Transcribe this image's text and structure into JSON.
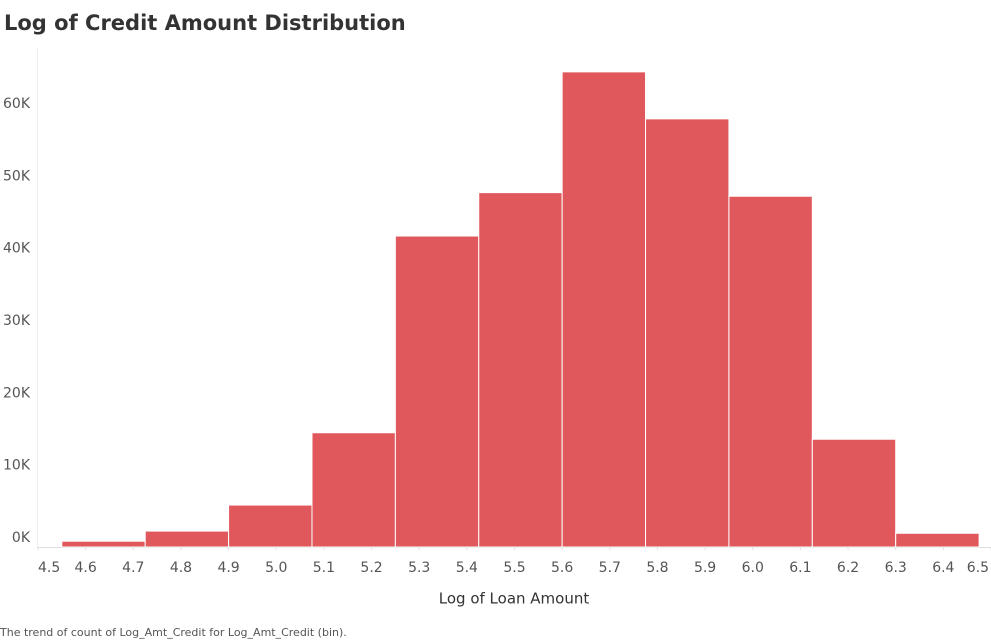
{
  "chart_data": {
    "type": "histogram",
    "title": "Log of Credit Amount Distribution",
    "x_label": "Log of Loan Amount",
    "footnote": "The trend of count of Log_Amt_Credit for Log_Amt_Credit (bin).",
    "bins": [
      4.55,
      4.725,
      4.9,
      5.075,
      5.25,
      5.425,
      5.6,
      5.775,
      5.95,
      6.125,
      6.3,
      6.475
    ],
    "values": [
      800,
      2200,
      5800,
      15800,
      43000,
      49000,
      65700,
      59200,
      48500,
      14900,
      1900
    ],
    "color": "#e0585b",
    "xlim": [
      4.5,
      6.5
    ],
    "xticks": [
      4.5,
      4.6,
      4.7,
      4.8,
      4.9,
      {
        "value": 5.0,
        "label": "5.0"
      },
      5.1,
      5.2,
      5.3,
      5.4,
      5.5,
      5.6,
      5.7,
      5.8,
      5.9,
      {
        "value": 6.0,
        "label": "6.0"
      },
      6.1,
      6.2,
      6.3,
      6.4,
      6.5
    ],
    "ylim": [
      0,
      69000
    ],
    "yticks": [
      {
        "value": 0,
        "label": "0K"
      },
      {
        "value": 10000,
        "label": "10K"
      },
      {
        "value": 20000,
        "label": "20K"
      },
      {
        "value": 30000,
        "label": "30K"
      },
      {
        "value": 40000,
        "label": "40K"
      },
      {
        "value": 50000,
        "label": "50K"
      },
      {
        "value": 60000,
        "label": "60K"
      }
    ],
    "grid": false
  }
}
